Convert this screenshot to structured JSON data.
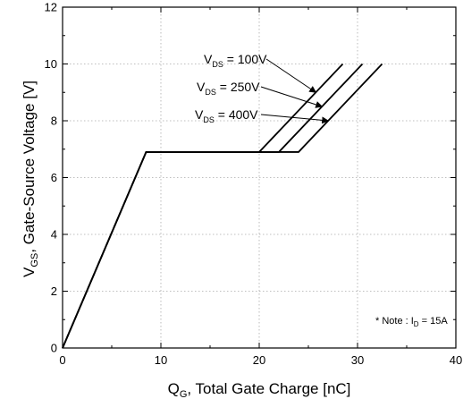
{
  "chart_data": {
    "type": "line",
    "xlabel": {
      "main": "Q",
      "sub": "G",
      "rest": ", Total Gate Charge [nC]"
    },
    "ylabel": {
      "main": "V",
      "sub": "GS",
      "rest": ", Gate-Source Voltage [V]"
    },
    "xlim": [
      0,
      40
    ],
    "ylim": [
      0,
      12
    ],
    "xticks": [
      0,
      10,
      20,
      30,
      40
    ],
    "yticks": [
      0,
      2,
      4,
      6,
      8,
      10,
      12
    ],
    "grid": true,
    "series": [
      {
        "name": "VDS=100V",
        "points": [
          [
            0,
            0
          ],
          [
            8.5,
            6.9
          ],
          [
            20,
            6.9
          ],
          [
            28.5,
            10
          ]
        ]
      },
      {
        "name": "VDS=250V",
        "points": [
          [
            0,
            0
          ],
          [
            8.5,
            6.9
          ],
          [
            22,
            6.9
          ],
          [
            30.5,
            10
          ]
        ]
      },
      {
        "name": "VDS=400V",
        "points": [
          [
            0,
            0
          ],
          [
            8.5,
            6.9
          ],
          [
            24,
            6.9
          ],
          [
            32.5,
            10
          ]
        ]
      }
    ],
    "annotations": [
      {
        "main": "V",
        "sub": "DS",
        "rest": " = 100V"
      },
      {
        "main": "V",
        "sub": "DS",
        "rest": " = 250V"
      },
      {
        "main": "V",
        "sub": "DS",
        "rest": " = 400V"
      }
    ],
    "note": {
      "pre": "* Note : I",
      "sub": "D",
      "rest": " = 15A"
    }
  }
}
